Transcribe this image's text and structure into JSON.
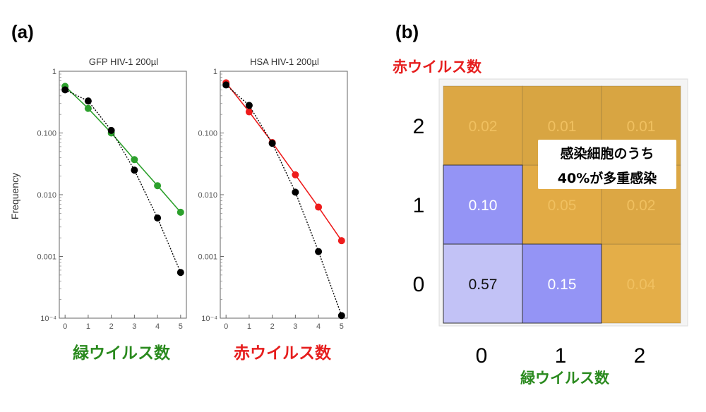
{
  "panels": {
    "a_label": "(a)",
    "b_label": "(b)"
  },
  "chart_data": [
    {
      "type": "line",
      "title": "GFP HIV-1 200µl",
      "ylabel": "Frequency",
      "xlabel": "緑ウイルス数",
      "x": [
        0,
        1,
        2,
        3,
        4,
        5
      ],
      "y_scale": "log",
      "ylim": [
        0.0001,
        1
      ],
      "yticks": [
        "1",
        "0.100",
        "0.010",
        "0.001",
        "10⁻⁴"
      ],
      "xticks": [
        "0",
        "1",
        "2",
        "3",
        "4",
        "5"
      ],
      "series": [
        {
          "color": "#2ca02c",
          "style": "solid",
          "values": [
            0.57,
            0.25,
            0.1,
            0.037,
            0.014,
            0.0052
          ]
        },
        {
          "color": "#000000",
          "style": "dotted",
          "values": [
            0.5,
            0.33,
            0.11,
            0.025,
            0.0042,
            0.00055
          ]
        }
      ]
    },
    {
      "type": "line",
      "title": "HSA HIV-1 200µl",
      "xlabel": "赤ウイルス数",
      "x": [
        0,
        1,
        2,
        3,
        4,
        5
      ],
      "y_scale": "log",
      "ylim": [
        0.0001,
        1
      ],
      "yticks": [
        "1",
        "0.100",
        "0.010",
        "0.001",
        "10⁻⁴"
      ],
      "xticks": [
        "0",
        "1",
        "2",
        "3",
        "4",
        "5"
      ],
      "series": [
        {
          "color": "#ee1c1c",
          "style": "solid",
          "values": [
            0.65,
            0.22,
            0.07,
            0.021,
            0.0063,
            0.0018
          ]
        },
        {
          "color": "#000000",
          "style": "dotted",
          "values": [
            0.6,
            0.28,
            0.068,
            0.011,
            0.0012,
            0.00011
          ]
        }
      ]
    },
    {
      "type": "heatmap",
      "xlabel": "緑ウイルス数",
      "ylabel": "赤ウイルス数",
      "x_categories": [
        "0",
        "1",
        "2"
      ],
      "y_categories": [
        "0",
        "1",
        "2"
      ],
      "cells": [
        {
          "x": 0,
          "y": 0,
          "value": "0.57",
          "color": "#c2c2f6",
          "text_color": "#111111"
        },
        {
          "x": 1,
          "y": 0,
          "value": "0.15",
          "color": "#9494f5",
          "text_color": "#ffffff"
        },
        {
          "x": 2,
          "y": 0,
          "value": "0.04",
          "color": "#e4ae48",
          "text_color": "#f0c060"
        },
        {
          "x": 0,
          "y": 1,
          "value": "0.10",
          "color": "#9494f5",
          "text_color": "#ffffff"
        },
        {
          "x": 1,
          "y": 1,
          "value": "0.05",
          "color": "#e2ab45",
          "text_color": "#f0c060"
        },
        {
          "x": 2,
          "y": 1,
          "value": "0.02",
          "color": "#dca744",
          "text_color": "#f0c060"
        },
        {
          "x": 0,
          "y": 2,
          "value": "0.02",
          "color": "#dca744",
          "text_color": "#f0c060"
        },
        {
          "x": 1,
          "y": 2,
          "value": "0.01",
          "color": "#d8a542",
          "text_color": "#f0c060"
        },
        {
          "x": 2,
          "y": 2,
          "value": "0.01",
          "color": "#d8a542",
          "text_color": "#f0c060"
        }
      ],
      "annotation_lines": [
        "感染細胞のうち",
        "40%が多重感染"
      ]
    }
  ]
}
